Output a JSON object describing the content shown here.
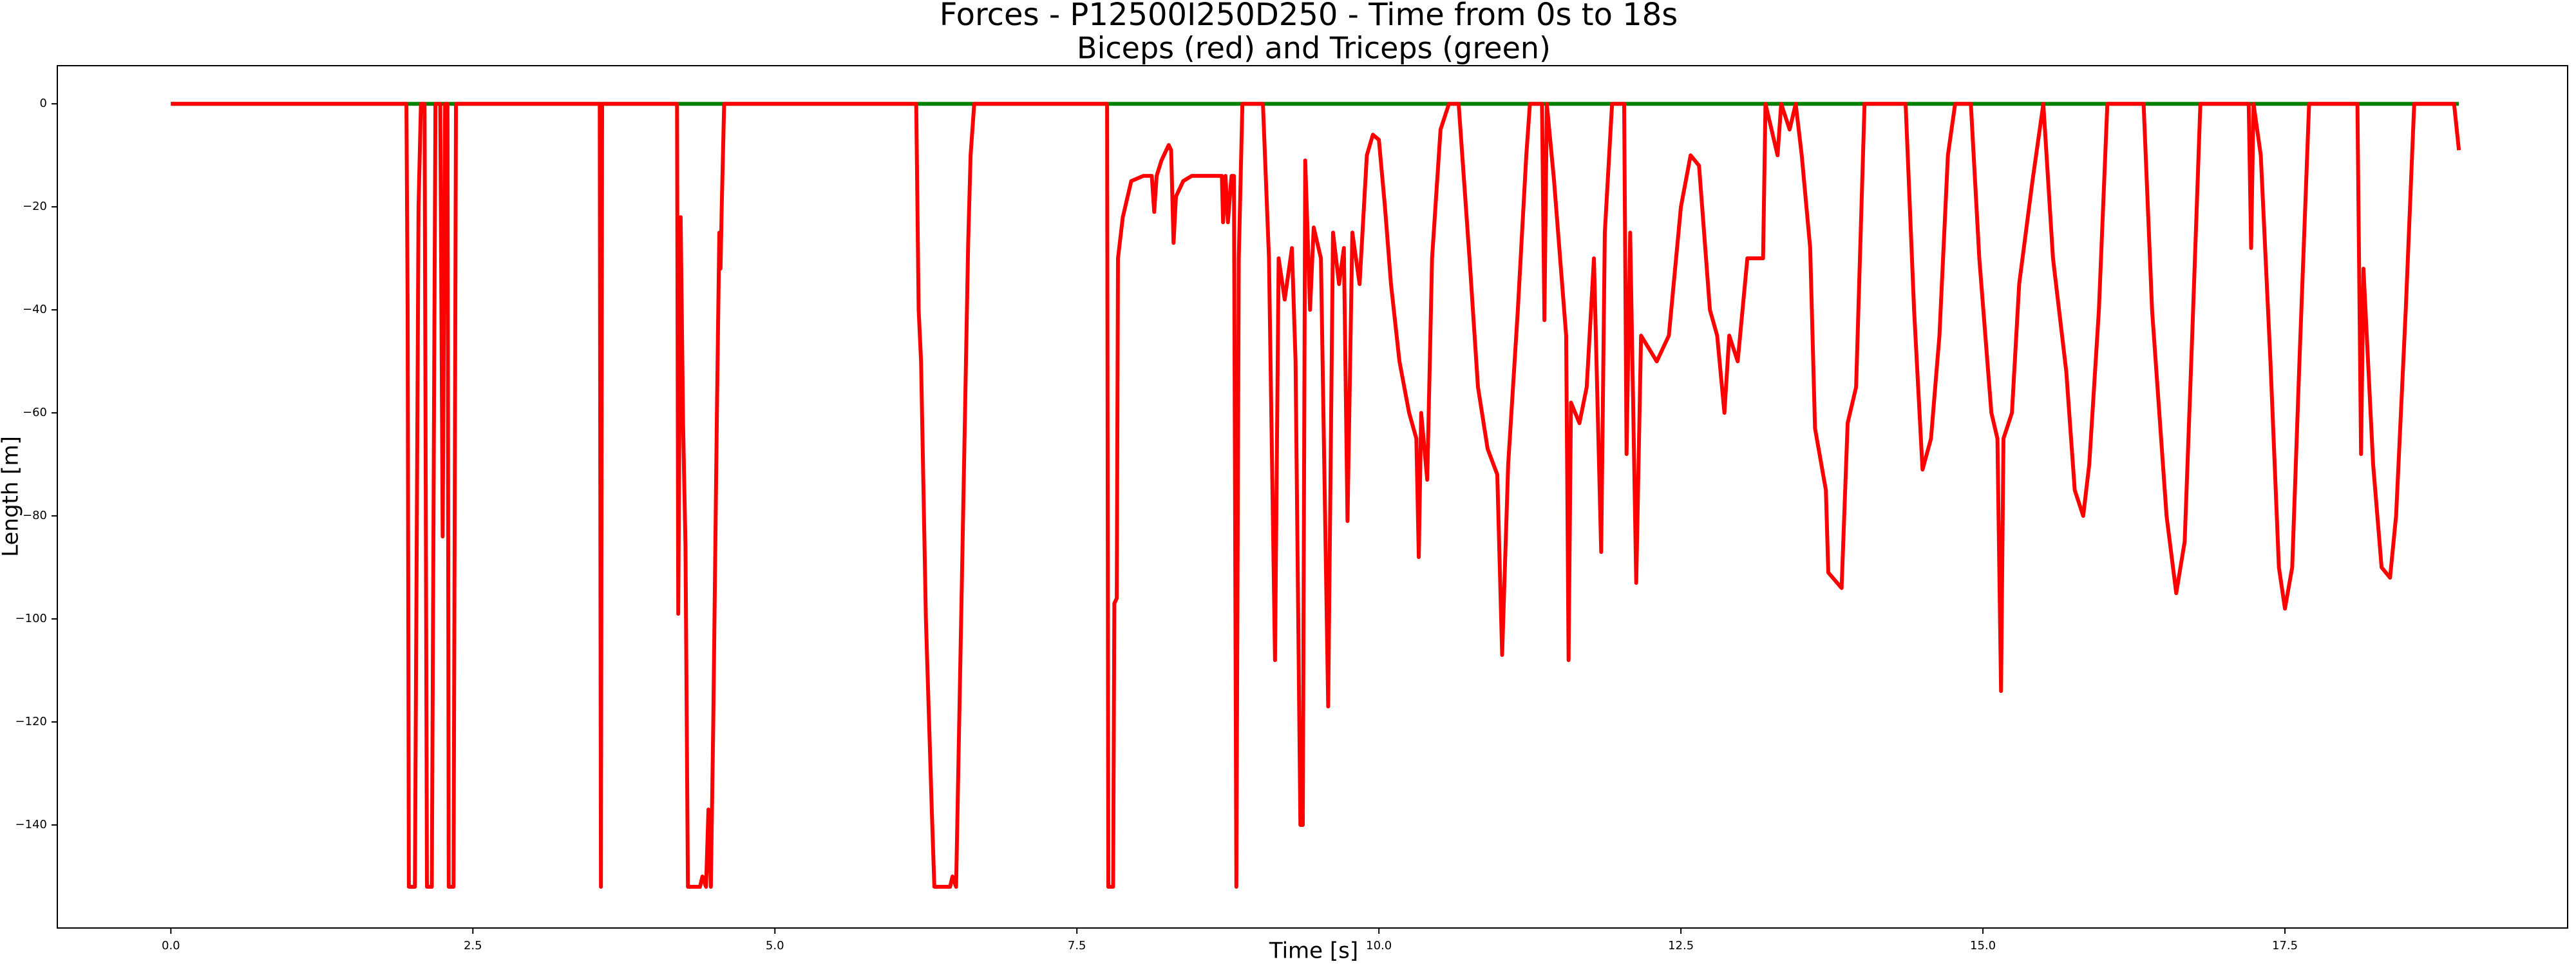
{
  "chart_data": {
    "type": "line",
    "title": "Forces - P12500I250D250 - Time from 0s to 18s",
    "subtitle": "Biceps (red) and Triceps (green)",
    "x_label": "Time [s]",
    "y_label": "Length [m]",
    "xlim": [
      -0.94,
      19.84
    ],
    "ylim": [
      -160,
      7.4
    ],
    "xticks": [
      {
        "value": 0,
        "label": "0.0"
      },
      2.5,
      {
        "value": 5,
        "label": "5.0"
      },
      7.5,
      {
        "value": 10,
        "label": "10.0"
      },
      12.5,
      {
        "value": 15,
        "label": "15.0"
      },
      17.5
    ],
    "yticks": [
      0,
      {
        "value": -20,
        "label": "−20"
      },
      {
        "value": -40,
        "label": "−40"
      },
      {
        "value": -60,
        "label": "−60"
      },
      {
        "value": -80,
        "label": "−80"
      },
      {
        "value": -100,
        "label": "−100"
      },
      {
        "value": -120,
        "label": "−120"
      },
      {
        "value": -140,
        "label": "−140"
      }
    ],
    "series": [
      {
        "color": "#008000",
        "x": [
          0,
          18.94
        ],
        "values": [
          0,
          0
        ]
      },
      {
        "color": "#ff0000",
        "x": [
          0,
          1.95,
          1.96,
          1.97,
          2.02,
          2.05,
          2.07,
          2.1,
          2.12,
          2.16,
          2.19,
          2.23,
          2.25,
          2.27,
          2.29,
          2.3,
          2.34,
          2.36,
          3.55,
          3.56,
          3.57,
          4.19,
          4.2,
          4.22,
          4.24,
          4.26,
          4.28,
          4.38,
          4.4,
          4.43,
          4.45,
          4.47,
          4.49,
          4.52,
          4.54,
          4.55,
          4.56,
          4.58,
          6.17,
          6.19,
          6.21,
          6.25,
          6.3,
          6.32,
          6.45,
          6.47,
          6.5,
          6.55,
          6.6,
          6.62,
          6.65,
          7.75,
          7.76,
          7.8,
          7.81,
          7.83,
          7.84,
          7.88,
          7.95,
          8.05,
          8.12,
          8.14,
          8.16,
          8.2,
          8.26,
          8.28,
          8.3,
          8.32,
          8.38,
          8.45,
          8.7,
          8.71,
          8.73,
          8.75,
          8.78,
          8.8,
          8.82,
          8.84,
          8.87,
          9.04,
          9.09,
          9.14,
          9.17,
          9.22,
          9.28,
          9.31,
          9.35,
          9.37,
          9.39,
          9.43,
          9.46,
          9.52,
          9.58,
          9.62,
          9.67,
          9.71,
          9.74,
          9.78,
          9.84,
          9.9,
          9.95,
          10.0,
          10.05,
          10.1,
          10.17,
          10.25,
          10.31,
          10.33,
          10.35,
          10.4,
          10.44,
          10.51,
          10.58,
          10.66,
          10.75,
          10.82,
          10.9,
          10.98,
          11.02,
          11.07,
          11.15,
          11.22,
          11.25,
          11.35,
          11.37,
          11.39,
          11.45,
          11.55,
          11.57,
          11.59,
          11.66,
          11.72,
          11.78,
          11.84,
          11.87,
          11.93,
          12.03,
          12.05,
          12.08,
          12.13,
          12.17,
          12.3,
          12.4,
          12.5,
          12.58,
          12.65,
          12.74,
          12.8,
          12.86,
          12.9,
          12.97,
          13.05,
          13.18,
          13.2,
          13.3,
          13.33,
          13.4,
          13.45,
          13.5,
          13.57,
          13.61,
          13.7,
          13.72,
          13.83,
          13.88,
          13.95,
          14.02,
          14.36,
          14.43,
          14.5,
          14.57,
          14.64,
          14.71,
          14.77,
          14.9,
          14.97,
          15.07,
          15.12,
          15.15,
          15.17,
          15.24,
          15.3,
          15.41,
          15.5,
          15.58,
          15.69,
          15.76,
          15.83,
          15.88,
          15.96,
          16.03,
          16.33,
          16.4,
          16.52,
          16.6,
          16.67,
          16.74,
          16.8,
          17.2,
          17.22,
          17.24,
          17.3,
          17.38,
          17.45,
          17.5,
          17.56,
          17.62,
          17.7,
          18.1,
          18.13,
          18.15,
          18.23,
          18.3,
          18.37,
          18.42,
          18.5,
          18.57,
          18.9,
          18.94
        ],
        "values": [
          0,
          0,
          -40,
          -152,
          -152,
          -20,
          0,
          0,
          -152,
          -152,
          0,
          0,
          -84,
          0,
          0,
          -152,
          -152,
          0,
          0,
          -152,
          0,
          0,
          -99,
          -22,
          -62,
          -86,
          -152,
          -152,
          -150,
          -152,
          -137,
          -152,
          -120,
          -60,
          -25,
          -32,
          -20,
          0,
          0,
          -40,
          -50,
          -100,
          -138,
          -152,
          -152,
          -150,
          -152,
          -90,
          -27,
          -10,
          0,
          0,
          -152,
          -152,
          -97,
          -96,
          -30,
          -22,
          -15,
          -14,
          -14,
          -21,
          -14,
          -11,
          -8,
          -9,
          -27,
          -18,
          -15,
          -14,
          -14,
          -23,
          -14,
          -23,
          -14,
          -14,
          -152,
          -30,
          0,
          0,
          -30,
          -108,
          -30,
          -38,
          -28,
          -50,
          -140,
          -140,
          -11,
          -40,
          -24,
          -30,
          -117,
          -25,
          -35,
          -28,
          -81,
          -25,
          -35,
          -10,
          -6,
          -7,
          -20,
          -35,
          -50,
          -60,
          -65,
          -88,
          -60,
          -73,
          -30,
          -5,
          0,
          0,
          -30,
          -55,
          -67,
          -72,
          -107,
          -70,
          -40,
          -10,
          0,
          0,
          -42,
          0,
          -15,
          -45,
          -108,
          -58,
          -62,
          -55,
          -30,
          -87,
          -25,
          0,
          0,
          -68,
          -25,
          -93,
          -45,
          -50,
          -45,
          -20,
          -10,
          -12,
          -40,
          -45,
          -60,
          -45,
          -50,
          -30,
          -30,
          0,
          -10,
          0,
          -5,
          0,
          -10,
          -28,
          -63,
          -75,
          -91,
          -94,
          -62,
          -55,
          0,
          0,
          -40,
          -71,
          -65,
          -45,
          -10,
          0,
          0,
          -30,
          -60,
          -65,
          -114,
          -65,
          -60,
          -35,
          -15,
          0,
          -30,
          -52,
          -75,
          -80,
          -70,
          -40,
          0,
          0,
          -40,
          -80,
          -95,
          -85,
          -40,
          0,
          0,
          -28,
          0,
          -10,
          -50,
          -90,
          -98,
          -90,
          -50,
          0,
          0,
          -68,
          -32,
          -70,
          -90,
          -92,
          -80,
          -40,
          0,
          0,
          -9
        ]
      }
    ]
  }
}
